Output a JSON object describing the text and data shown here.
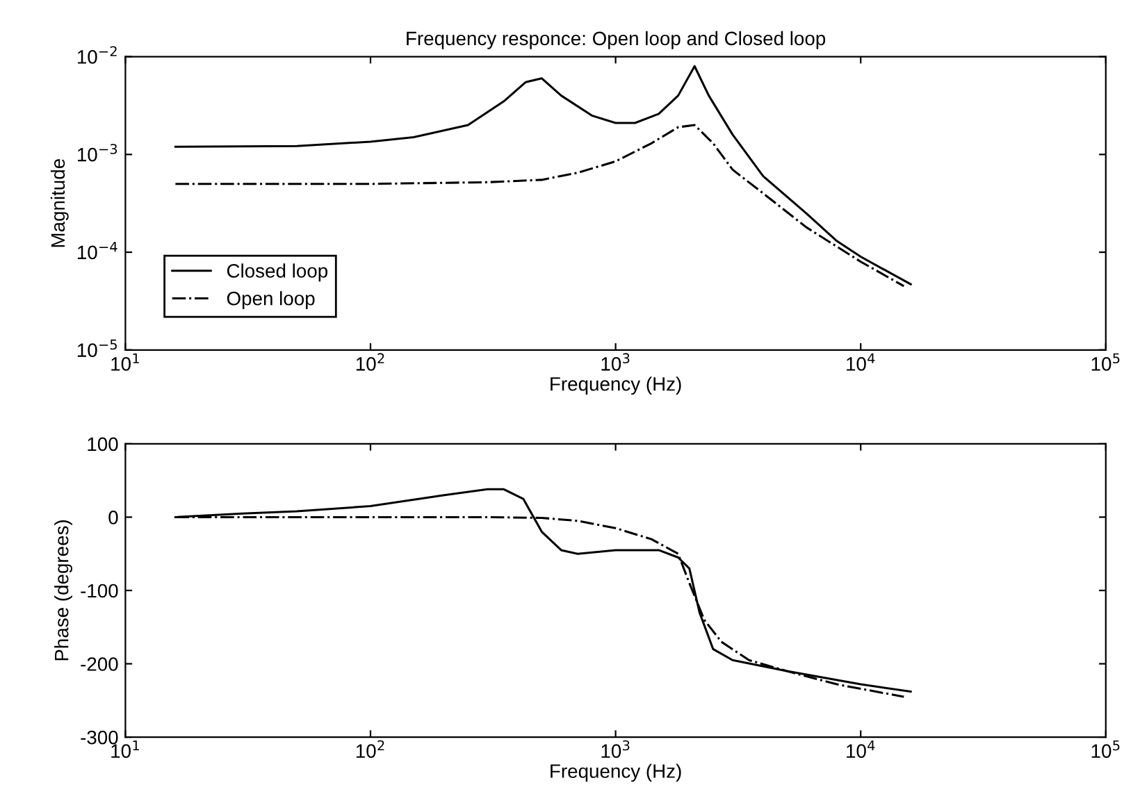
{
  "chart_data": [
    {
      "type": "line",
      "title": "Frequency responce: Open loop and Closed loop",
      "xlabel": "Frequency (Hz)",
      "ylabel": "Magnitude",
      "log": "xy",
      "xlim": [
        10,
        100000
      ],
      "ylim": [
        1e-05,
        0.01
      ],
      "xticks": [
        {
          "value": 10,
          "label": "10$^{1}$"
        },
        {
          "value": 100,
          "label": "10$^{2}$"
        },
        {
          "value": 1000,
          "label": "10$^{3}$"
        },
        {
          "value": 10000,
          "label": "10$^{4}$"
        },
        {
          "value": 100000,
          "label": "10$^{5}$"
        }
      ],
      "yticks": [
        {
          "value": 1e-05,
          "label": "10$^{−5}$"
        },
        {
          "value": 0.0001,
          "label": "10$^{−4}$"
        },
        {
          "value": 0.001,
          "label": "10$^{−3}$"
        },
        {
          "value": 0.01,
          "label": "10$^{−2}$"
        }
      ],
      "grid": false,
      "legend": "bottom left",
      "series": [
        {
          "name": "Closed loop",
          "color": "#000000",
          "line_style": "solid",
          "x": [
            16,
            50,
            100,
            150,
            250,
            350,
            430,
            500,
            600,
            800,
            1000,
            1200,
            1500,
            1800,
            2100,
            2400,
            3000,
            4000,
            6000,
            8000,
            10000,
            16000
          ],
          "values": [
            0.0012,
            0.00122,
            0.00135,
            0.0015,
            0.002,
            0.0035,
            0.0055,
            0.006,
            0.004,
            0.0025,
            0.0021,
            0.0021,
            0.0026,
            0.004,
            0.008,
            0.004,
            0.0016,
            0.0006,
            0.00025,
            0.00013,
            9e-05,
            4.7e-05
          ]
        },
        {
          "name": "Open loop",
          "color": "#000000",
          "line_style": "dashdot",
          "x": [
            16,
            100,
            300,
            500,
            700,
            1000,
            1400,
            1800,
            2100,
            2500,
            3000,
            4000,
            6000,
            10000,
            15000
          ],
          "values": [
            0.0005,
            0.0005,
            0.00052,
            0.00055,
            0.00065,
            0.00085,
            0.0013,
            0.0019,
            0.002,
            0.0013,
            0.0007,
            0.0004,
            0.00018,
            8e-05,
            4.5e-05
          ]
        }
      ]
    },
    {
      "type": "line",
      "xlabel": "Frequency (Hz)",
      "ylabel": "Phase (degrees)",
      "log": "x",
      "xlim": [
        10,
        100000
      ],
      "ylim": [
        -300,
        100
      ],
      "xticks": [
        {
          "value": 10,
          "label": "10$^{1}$"
        },
        {
          "value": 100,
          "label": "10$^{2}$"
        },
        {
          "value": 1000,
          "label": "10$^{3}$"
        },
        {
          "value": 10000,
          "label": "10$^{4}$"
        },
        {
          "value": 100000,
          "label": "10$^{5}$"
        }
      ],
      "yticks": [
        -300,
        -200,
        -100,
        0,
        100
      ],
      "grid": false,
      "series": [
        {
          "color": "#000000",
          "line_style": "solid",
          "x": [
            16,
            30,
            50,
            100,
            200,
            300,
            350,
            420,
            500,
            600,
            700,
            1000,
            1500,
            1800,
            2000,
            2200,
            2500,
            3000,
            5000,
            10000,
            16000
          ],
          "values": [
            0,
            5,
            8,
            15,
            30,
            38,
            38,
            25,
            -20,
            -45,
            -50,
            -45,
            -45,
            -55,
            -70,
            -130,
            -180,
            -195,
            -210,
            -228,
            -238
          ]
        },
        {
          "color": "#000000",
          "line_style": "dashdot",
          "x": [
            16,
            300,
            500,
            700,
            1000,
            1400,
            1800,
            2000,
            2300,
            2700,
            3500,
            5000,
            8000,
            15000
          ],
          "values": [
            0,
            0,
            -1,
            -5,
            -15,
            -30,
            -50,
            -90,
            -140,
            -170,
            -195,
            -210,
            -228,
            -245
          ]
        }
      ]
    }
  ]
}
